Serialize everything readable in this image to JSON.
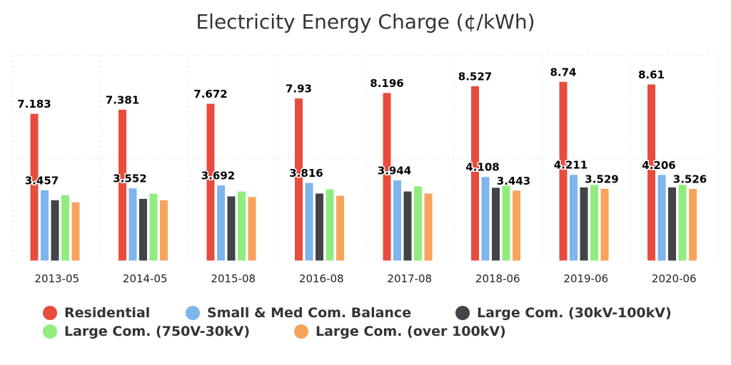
{
  "chart_data": {
    "type": "bar",
    "title": "Electricity Energy Charge (¢/kWh)",
    "xlabel": "",
    "ylabel": "",
    "ylim": [
      0,
      10
    ],
    "grid": true,
    "legend_placement": "bottom",
    "categories": [
      "2013-05",
      "2014-05",
      "2015-08",
      "2016-08",
      "2017-08",
      "2018-06",
      "2019-06",
      "2020-06"
    ],
    "series": [
      {
        "name": "Residential",
        "color": "#e84c3d",
        "values": [
          7.183,
          7.381,
          7.672,
          7.93,
          8.196,
          8.527,
          8.74,
          8.61
        ],
        "labeled": [
          true,
          true,
          true,
          true,
          true,
          true,
          true,
          true
        ]
      },
      {
        "name": "Small & Med Com. Balance",
        "color": "#7eb5ec",
        "values": [
          3.457,
          3.552,
          3.692,
          3.816,
          3.944,
          4.108,
          4.211,
          4.206
        ],
        "labeled": [
          true,
          true,
          true,
          true,
          true,
          true,
          true,
          true
        ]
      },
      {
        "name": "Large Com. (30kV-100kV)",
        "color": "#434348",
        "values": [
          2.97,
          3.04,
          3.16,
          3.3,
          3.4,
          3.58,
          3.6,
          3.6
        ],
        "labeled": [
          false,
          false,
          false,
          false,
          false,
          false,
          false,
          false
        ]
      },
      {
        "name": "Large Com. (750V-30kV)",
        "color": "#90ed7d",
        "values": [
          3.22,
          3.29,
          3.4,
          3.51,
          3.65,
          3.68,
          3.72,
          3.72
        ],
        "labeled": [
          false,
          false,
          false,
          false,
          false,
          false,
          false,
          false
        ]
      },
      {
        "name": "Large Com. (over 100kV)",
        "color": "#f7a35c",
        "values": [
          2.87,
          2.97,
          3.13,
          3.19,
          3.3,
          3.443,
          3.529,
          3.526
        ],
        "labeled": [
          false,
          false,
          false,
          false,
          false,
          true,
          true,
          true
        ]
      }
    ]
  }
}
